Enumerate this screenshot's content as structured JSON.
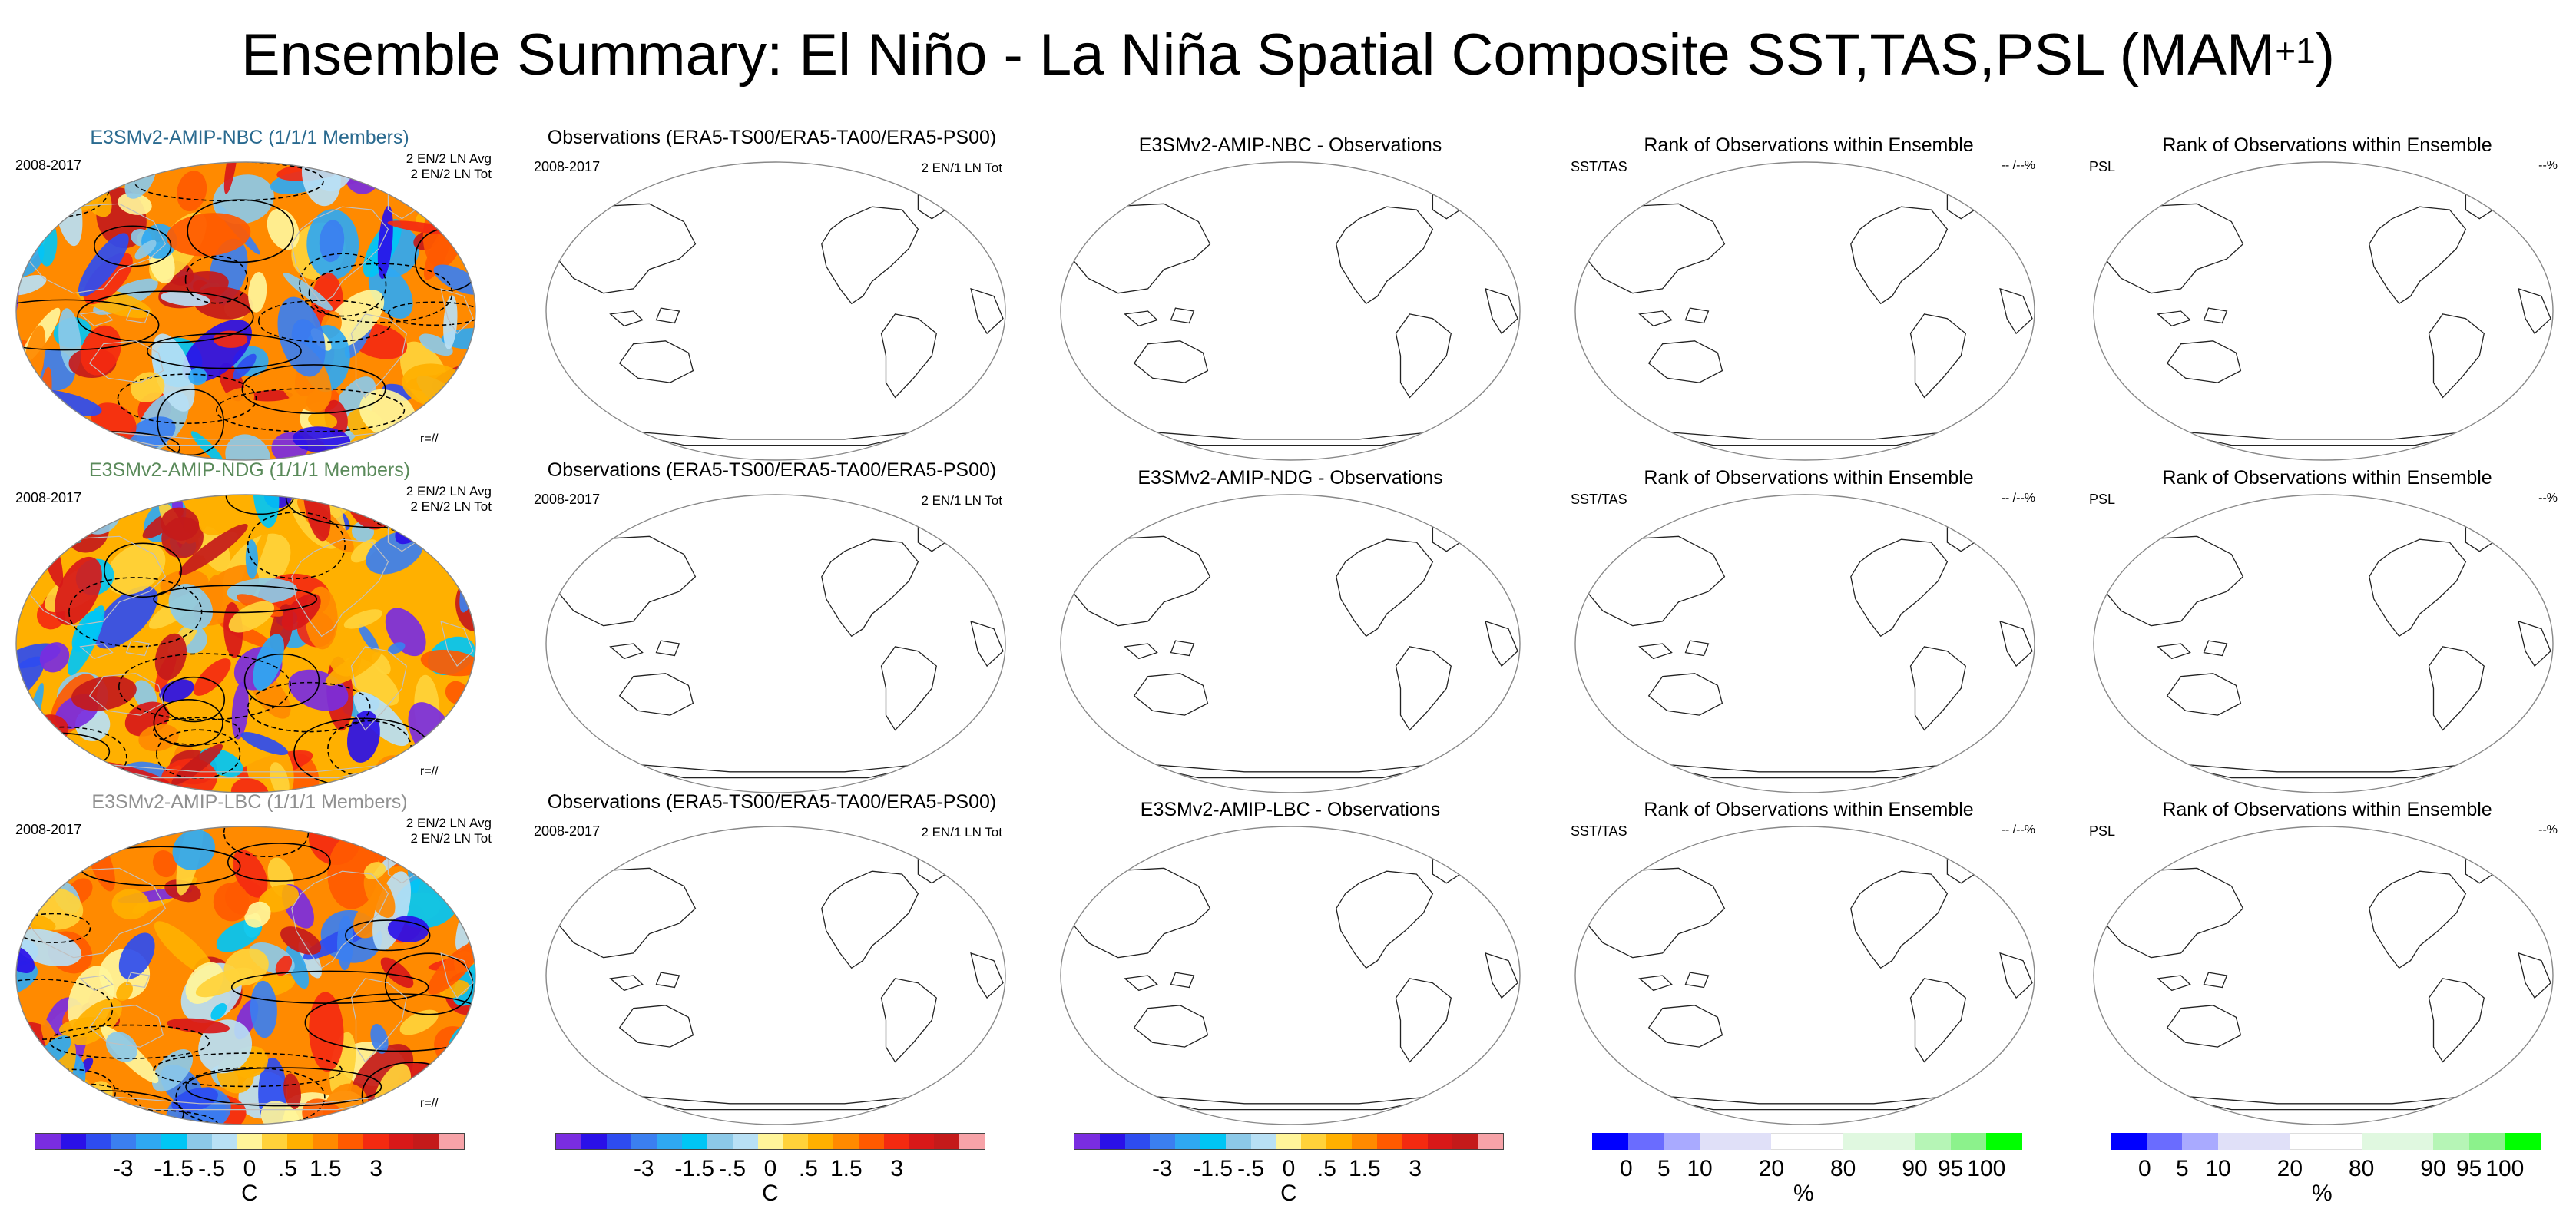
{
  "title_main": "Ensemble Summary: El Niño - La Niña Spatial Composite SST,TAS,PSL (MAM",
  "title_sup": "+1",
  "title_close": ")",
  "chart_data": {
    "type": "map-panels",
    "period": "2008-2017",
    "rows": [
      {
        "model_title": "E3SMv2-AMIP-NBC (1/1/1 Members)",
        "model_color": "#2a6a8f",
        "model_stats": [
          "2 EN/2 LN Avg",
          "2 EN/2 LN Tot"
        ],
        "model_corner": "r=//",
        "obs_title": "Observations (ERA5-TS00/ERA5-TA00/ERA5-PS00)",
        "obs_stats": "2 EN/1 LN Tot",
        "diff_title": "E3SMv2-AMIP-NBC - Observations",
        "rank_title_1": "Rank of Observations within Ensemble",
        "rank_left_1": "SST/TAS",
        "rank_right_1": "-- /--%",
        "rank_title_2": "Rank of Observations within Ensemble",
        "rank_left_2": "PSL",
        "rank_right_2": "--%"
      },
      {
        "model_title": "E3SMv2-AMIP-NDG (1/1/1 Members)",
        "model_color": "#5a8a5a",
        "model_stats": [
          "2 EN/2 LN Avg",
          "2 EN/2 LN Tot"
        ],
        "model_corner": "r=//",
        "obs_title": "Observations (ERA5-TS00/ERA5-TA00/ERA5-PS00)",
        "obs_stats": "2 EN/1 LN Tot",
        "diff_title": "E3SMv2-AMIP-NDG - Observations",
        "rank_title_1": "Rank of Observations within Ensemble",
        "rank_left_1": "SST/TAS",
        "rank_right_1": "-- /--%",
        "rank_title_2": "Rank of Observations within Ensemble",
        "rank_left_2": "PSL",
        "rank_right_2": "--%"
      },
      {
        "model_title": "E3SMv2-AMIP-LBC (1/1/1 Members)",
        "model_color": "#909090",
        "model_stats": [
          "2 EN/2 LN Avg",
          "2 EN/2 LN Tot"
        ],
        "model_corner": "r=//",
        "obs_title": "Observations (ERA5-TS00/ERA5-TA00/ERA5-PS00)",
        "obs_stats": "2 EN/1 LN Tot",
        "diff_title": "E3SMv2-AMIP-LBC - Observations",
        "rank_title_1": "Rank of Observations within Ensemble",
        "rank_left_1": "SST/TAS",
        "rank_right_1": "-- /--%",
        "rank_title_2": "Rank of Observations within Ensemble",
        "rank_left_2": "PSL",
        "rank_right_2": "--%"
      }
    ],
    "temp_colorbar": {
      "unit": "C",
      "tick_labels": [
        "-3",
        "-1.5",
        "-.5",
        "0",
        ".5",
        "1.5",
        "3"
      ],
      "colors": [
        "#7a2de0",
        "#2a10e8",
        "#2e4cf0",
        "#3b7ff0",
        "#2fa8f2",
        "#00c6f5",
        "#8cc9e8",
        "#b8e0f5",
        "#fff59a",
        "#ffd23a",
        "#ffb000",
        "#ff8a00",
        "#ff5a00",
        "#f42a10",
        "#d81818",
        "#c41a1a",
        "#f7a3a8"
      ]
    },
    "rank_colorbar": {
      "unit": "%",
      "tick_labels": [
        "0",
        "5",
        "10",
        "20",
        "80",
        "90",
        "95",
        "100"
      ],
      "colors": [
        "#0000ff",
        "#6a6cff",
        "#a9aaff",
        "#e0e0f8",
        "#ffffff",
        "#e0f8e0",
        "#b6f5b6",
        "#8cf28c",
        "#00ff00"
      ]
    }
  }
}
